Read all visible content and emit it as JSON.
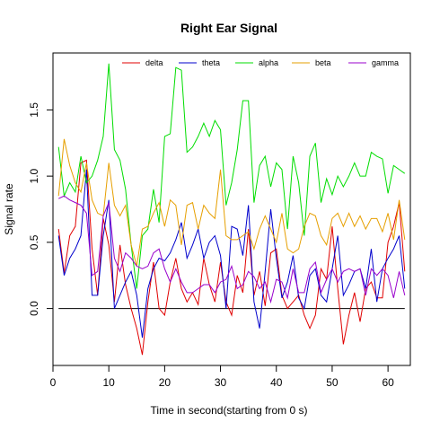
{
  "chart_data": {
    "type": "line",
    "title": "Right Ear Signal",
    "xlabel": "Time in second(starting from 0 s)",
    "ylabel": "Signal rate",
    "xlim": [
      0,
      64
    ],
    "ylim": [
      -0.43,
      1.93
    ],
    "x_ticks": [
      0,
      10,
      20,
      30,
      40,
      50,
      60
    ],
    "y_ticks": [
      0.0,
      0.5,
      1.0,
      1.5
    ],
    "x_tick_labels": [
      "0",
      "10",
      "20",
      "30",
      "40",
      "50",
      "60"
    ],
    "y_tick_labels": [
      "0.0",
      "0.5",
      "1.0",
      "1.5"
    ],
    "grid": false,
    "legend_position": "top",
    "reference_line": {
      "y": 0,
      "x_start": 1,
      "x_end": 63,
      "color": "#000000"
    },
    "x": [
      1,
      2,
      3,
      4,
      5,
      6,
      7,
      8,
      9,
      10,
      11,
      12,
      13,
      14,
      15,
      16,
      17,
      18,
      19,
      20,
      21,
      22,
      23,
      24,
      25,
      26,
      27,
      28,
      29,
      30,
      31,
      32,
      33,
      34,
      35,
      36,
      37,
      38,
      39,
      40,
      41,
      42,
      43,
      44,
      45,
      46,
      47,
      48,
      49,
      50,
      51,
      52,
      53,
      54,
      55,
      56,
      57,
      58,
      59,
      60,
      61,
      62,
      63
    ],
    "series": [
      {
        "name": "delta",
        "color": "#e00000",
        "values": [
          0.6,
          0.27,
          0.55,
          0.62,
          1.1,
          1.12,
          0.45,
          0.1,
          0.68,
          0.48,
          0.05,
          0.48,
          0.18,
          0.0,
          -0.15,
          -0.35,
          0.05,
          0.35,
          0.0,
          -0.05,
          0.2,
          0.38,
          0.15,
          0.05,
          0.12,
          0.03,
          0.38,
          0.18,
          0.05,
          0.35,
          0.05,
          -0.05,
          0.25,
          0.12,
          0.6,
          0.1,
          0.28,
          0.02,
          0.42,
          0.45,
          0.1,
          0.0,
          0.05,
          0.1,
          -0.05,
          -0.15,
          -0.05,
          0.3,
          0.22,
          0.62,
          0.15,
          -0.27,
          -0.05,
          0.12,
          -0.1,
          0.15,
          0.2,
          0.08,
          0.08,
          0.5,
          0.62,
          0.8,
          0.28
        ]
      },
      {
        "name": "theta",
        "color": "#0000cc",
        "values": [
          0.55,
          0.25,
          0.38,
          0.45,
          0.55,
          1.05,
          0.1,
          0.1,
          0.55,
          0.82,
          0.0,
          0.1,
          0.2,
          0.28,
          0.1,
          -0.22,
          0.15,
          0.3,
          0.38,
          0.36,
          0.42,
          0.52,
          0.65,
          0.38,
          0.48,
          0.6,
          0.38,
          0.5,
          0.55,
          0.4,
          0.0,
          0.62,
          0.6,
          0.4,
          0.78,
          0.05,
          -0.15,
          0.28,
          0.75,
          0.38,
          0.08,
          0.2,
          0.4,
          0.08,
          0.0,
          0.25,
          0.3,
          0.1,
          0.05,
          0.3,
          0.55,
          0.1,
          0.18,
          0.28,
          0.3,
          0.15,
          0.45,
          0.05,
          0.3,
          0.38,
          0.45,
          0.55,
          0.15
        ]
      },
      {
        "name": "alpha",
        "color": "#00dd00",
        "values": [
          1.22,
          0.85,
          0.95,
          0.88,
          1.15,
          0.95,
          1.0,
          1.12,
          1.3,
          1.85,
          1.2,
          1.12,
          0.9,
          0.48,
          0.15,
          0.55,
          0.6,
          0.9,
          0.65,
          1.3,
          1.32,
          1.82,
          1.8,
          1.18,
          1.22,
          1.3,
          1.4,
          1.3,
          1.42,
          1.35,
          0.78,
          0.95,
          1.2,
          1.57,
          1.57,
          0.8,
          1.08,
          1.15,
          0.92,
          1.1,
          1.05,
          0.6,
          1.15,
          0.95,
          0.55,
          1.15,
          1.25,
          0.8,
          0.98,
          0.86,
          1.0,
          0.92,
          1.0,
          1.1,
          1.0,
          1.0,
          1.18,
          1.15,
          1.13,
          0.87,
          1.08,
          1.05,
          1.02
        ]
      },
      {
        "name": "beta",
        "color": "#e69f00",
        "values": [
          0.85,
          1.28,
          1.08,
          0.95,
          0.88,
          1.1,
          0.82,
          0.72,
          0.7,
          1.1,
          0.78,
          0.7,
          0.78,
          0.48,
          0.32,
          0.6,
          0.62,
          0.72,
          0.8,
          0.62,
          0.82,
          0.78,
          0.48,
          0.78,
          0.8,
          0.6,
          0.78,
          0.72,
          0.68,
          1.05,
          0.55,
          0.52,
          0.52,
          0.55,
          0.58,
          0.45,
          0.6,
          0.7,
          0.6,
          0.5,
          0.72,
          0.45,
          0.42,
          0.45,
          0.62,
          0.72,
          0.7,
          0.55,
          0.48,
          0.68,
          0.72,
          0.62,
          0.72,
          0.62,
          0.7,
          0.6,
          0.68,
          0.68,
          0.58,
          0.72,
          0.52,
          0.82,
          0.52
        ]
      },
      {
        "name": "gamma",
        "color": "#9900cc",
        "values": [
          0.83,
          0.85,
          0.82,
          0.8,
          0.78,
          0.72,
          0.25,
          0.28,
          0.7,
          0.8,
          0.38,
          0.28,
          0.42,
          0.38,
          0.32,
          0.3,
          0.32,
          0.42,
          0.45,
          0.3,
          0.2,
          0.3,
          0.2,
          0.12,
          0.12,
          0.15,
          0.18,
          0.18,
          0.12,
          0.2,
          0.22,
          0.32,
          0.15,
          0.18,
          0.28,
          0.24,
          0.15,
          0.2,
          0.05,
          0.22,
          0.2,
          0.08,
          0.3,
          0.12,
          0.12,
          0.3,
          0.35,
          0.12,
          0.22,
          0.3,
          0.2,
          0.28,
          0.3,
          0.28,
          0.3,
          0.1,
          0.3,
          0.25,
          0.3,
          0.25,
          0.08,
          0.28,
          0.1
        ]
      }
    ]
  }
}
